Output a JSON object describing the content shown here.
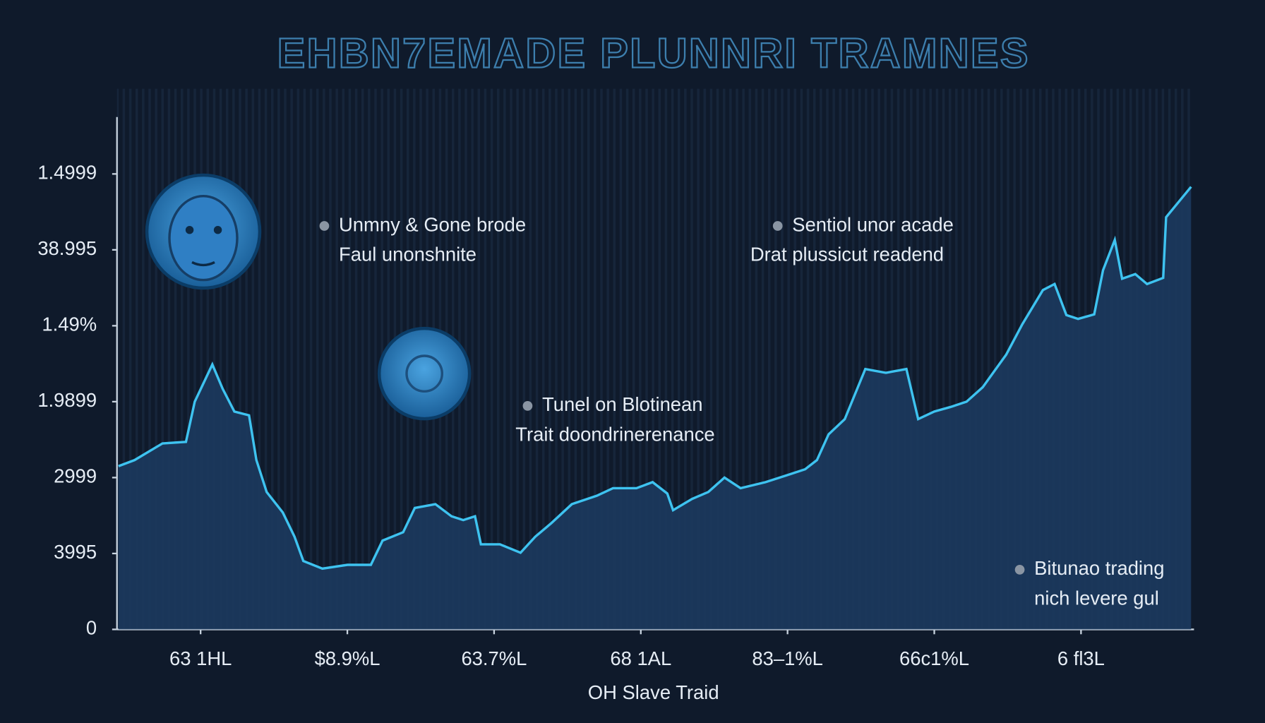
{
  "chart_data": {
    "type": "area",
    "title": "EHBN7EMADE PLUNNRI TRAMNES",
    "x_label": "OH Slave Traid",
    "color": "#3ec3f0",
    "fill": "#1c3a5e",
    "x": [
      0.44,
      0.55,
      0.74,
      0.9,
      0.96,
      1.08,
      1.15,
      1.23,
      1.33,
      1.38,
      1.45,
      1.56,
      1.64,
      1.7,
      1.83,
      2.0,
      2.16,
      2.24,
      2.38,
      2.46,
      2.6,
      2.71,
      2.79,
      2.87,
      2.91,
      3.04,
      3.18,
      3.28,
      3.39,
      3.53,
      3.7,
      3.81,
      3.97,
      4.08,
      4.18,
      4.22,
      4.35,
      4.46,
      4.57,
      4.68,
      4.85,
      5.01,
      5.12,
      5.2,
      5.28,
      5.39,
      5.53,
      5.67,
      5.81,
      5.89,
      6.0,
      6.11,
      6.22,
      6.33,
      6.49,
      6.6,
      6.74,
      6.82,
      6.9,
      6.98,
      7.09,
      7.15,
      7.23,
      7.28,
      7.37,
      7.45,
      7.56,
      7.58,
      7.75
    ],
    "values": [
      2.15,
      2.23,
      2.45,
      2.47,
      3.0,
      3.49,
      3.17,
      2.87,
      2.82,
      2.23,
      1.81,
      1.54,
      1.22,
      0.9,
      0.8,
      0.85,
      0.85,
      1.17,
      1.28,
      1.6,
      1.65,
      1.49,
      1.44,
      1.49,
      1.12,
      1.12,
      1.01,
      1.22,
      1.4,
      1.65,
      1.76,
      1.86,
      1.86,
      1.94,
      1.79,
      1.57,
      1.72,
      1.81,
      2.0,
      1.86,
      1.94,
      2.04,
      2.11,
      2.23,
      2.57,
      2.77,
      3.43,
      3.38,
      3.43,
      2.77,
      2.87,
      2.93,
      3.0,
      3.19,
      3.62,
      4.02,
      4.47,
      4.55,
      4.14,
      4.09,
      4.15,
      4.73,
      5.13,
      4.62,
      4.68,
      4.55,
      4.63,
      5.43,
      5.83
    ],
    "xlim": [
      0.43,
      7.77
    ],
    "ylim": [
      0,
      6.75
    ],
    "xticks": [
      {
        "value": 1,
        "label": "63 1HL"
      },
      {
        "value": 2,
        "label": "$8.9%L"
      },
      {
        "value": 3,
        "label": "63.7%L"
      },
      {
        "value": 4,
        "label": "68 1AL"
      },
      {
        "value": 5,
        "label": "83–1%L"
      },
      {
        "value": 6,
        "label": "66c1%L"
      },
      {
        "value": 7,
        "label": "6 fl3L"
      }
    ],
    "yticks": [
      0,
      {
        "value": 1,
        "label": "3995"
      },
      {
        "value": 2,
        "label": "2999"
      },
      {
        "value": 3,
        "label": "1.9899"
      },
      {
        "value": 4,
        "label": "1.49%"
      },
      {
        "value": 5,
        "label": "38.995"
      },
      {
        "value": 6,
        "label": "1.4999"
      }
    ],
    "annotations": [
      [
        "Unmny & Gone brode",
        "Faul unonshnite"
      ],
      [
        "Sentiol unor acade",
        "Drat plussicut readend"
      ],
      [
        "Tunel on Blotinean",
        "Trait doondrinerenance"
      ],
      [
        "Bitunao trading",
        "nich levere gul"
      ]
    ]
  }
}
